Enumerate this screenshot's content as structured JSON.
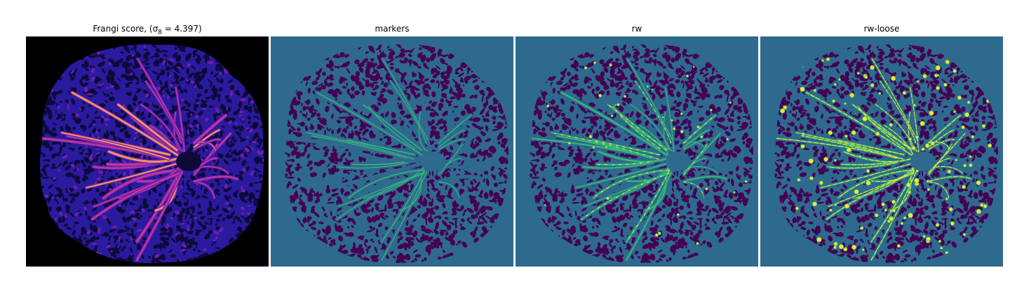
{
  "figure": {
    "panels": [
      {
        "title_text": "Frangi score, ",
        "title_math": "(σ",
        "title_sub": "8",
        "title_tail": " = 4.397)",
        "colormap": "magma"
      },
      {
        "title": "markers",
        "colormap": "viridis"
      },
      {
        "title": "rw",
        "colormap": "viridis"
      },
      {
        "title": "rw-loose",
        "colormap": "viridis"
      }
    ],
    "colors": {
      "background_black": "#000000",
      "frangi_blue": "#2a1a9e",
      "frangi_purple": "#6b1fb0",
      "frangi_magenta": "#c2379a",
      "frangi_orange": "#f3965e",
      "viridis_bg": "#2e6a8e",
      "viridis_dark": "#440154",
      "viridis_green": "#35b779",
      "viridis_yellow": "#fde725"
    }
  }
}
